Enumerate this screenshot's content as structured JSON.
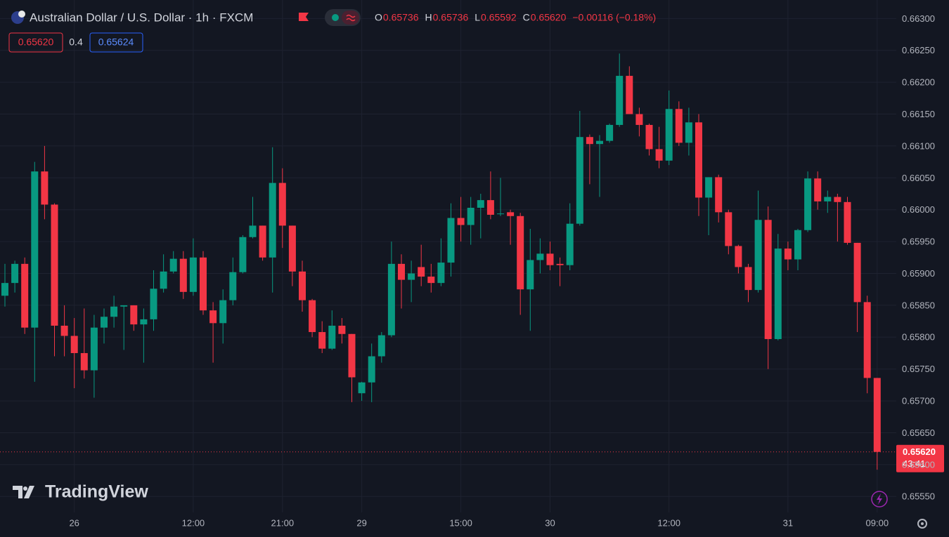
{
  "chart_data": {
    "type": "candlestick",
    "title": "Australian Dollar / U.S. Dollar · 1h · FXCM",
    "ohlc": [
      {
        "key": "O",
        "value": 0.65736,
        "label": "0.65736"
      },
      {
        "key": "H",
        "value": 0.65736,
        "label": "0.65736"
      },
      {
        "key": "L",
        "value": 0.65592,
        "label": "0.65592"
      },
      {
        "key": "C",
        "value": 0.6562,
        "label": "0.65620"
      }
    ],
    "change": {
      "value": -0.00116,
      "label": "−0.00116 (−0.18%)"
    },
    "bid": {
      "value": 0.6562,
      "label": "0.65620"
    },
    "spread": 0.4,
    "ask": {
      "value": 0.65624,
      "label": "0.65624"
    },
    "last_price": {
      "value": 0.6562,
      "label": "0.65620"
    },
    "countdown": "43:41",
    "watermark": "TradingView",
    "up_color": "#089981",
    "down_color": "#f23645",
    "grid": true,
    "categories": [
      null,
      null,
      null,
      null,
      null,
      null,
      null,
      "26",
      null,
      null,
      null,
      null,
      null,
      null,
      null,
      null,
      null,
      null,
      null,
      "12:00",
      null,
      null,
      null,
      null,
      null,
      null,
      null,
      null,
      "21:00",
      null,
      null,
      null,
      null,
      null,
      null,
      null,
      "29",
      null,
      null,
      null,
      null,
      null,
      null,
      null,
      null,
      null,
      "15:00",
      null,
      null,
      null,
      null,
      null,
      null,
      null,
      null,
      "30",
      null,
      null,
      null,
      null,
      null,
      null,
      null,
      null,
      null,
      null,
      null,
      "12:00",
      null,
      null,
      null,
      null,
      null,
      null,
      null,
      null,
      null,
      null,
      null,
      "31",
      null,
      null,
      null,
      null,
      null,
      null,
      null,
      null,
      "09:00"
    ],
    "open": [
      0.65865,
      0.65885,
      0.65915,
      0.65815,
      0.6606,
      0.66008,
      0.65818,
      0.65802,
      0.65775,
      0.65748,
      0.65815,
      0.65832,
      0.65848,
      0.6585,
      0.6582,
      0.65828,
      0.65876,
      0.65903,
      0.65923,
      0.65871,
      0.65925,
      0.65842,
      0.65822,
      0.65858,
      0.65902,
      0.65957,
      0.65975,
      0.65925,
      0.66042,
      0.65975,
      0.65903,
      0.65858,
      0.65808,
      0.65782,
      0.65818,
      0.65805,
      0.65712,
      0.65729,
      0.6577,
      0.65803,
      0.65915,
      0.6589,
      0.6591,
      0.65895,
      0.65885,
      0.65917,
      0.65987,
      0.65976,
      0.66003,
      0.66015,
      0.65993,
      0.65996,
      0.6599,
      0.65875,
      0.65921,
      0.65931,
      0.65915,
      0.65913,
      0.65978,
      0.66114,
      0.66103,
      0.66108,
      0.66133,
      0.6621,
      0.6615,
      0.66133,
      0.66095,
      0.66077,
      0.66158,
      0.66105,
      0.66137,
      0.66019,
      0.66051,
      0.65996,
      0.65943,
      0.6591,
      0.65874,
      0.65984,
      0.65797,
      0.65939,
      0.65922,
      0.65968,
      0.66049,
      0.66013,
      0.6602,
      0.66012,
      0.65948,
      0.65855,
      0.65736
    ],
    "high": [
      0.65915,
      0.6592,
      0.65925,
      0.66075,
      0.661,
      0.6601,
      0.6585,
      0.6583,
      0.65845,
      0.65835,
      0.65845,
      0.65865,
      0.6585,
      0.6585,
      0.65845,
      0.65905,
      0.6593,
      0.65935,
      0.65935,
      0.65955,
      0.65935,
      0.65855,
      0.65875,
      0.65925,
      0.6596,
      0.6602,
      0.65975,
      0.66098,
      0.66065,
      0.65975,
      0.6592,
      0.6586,
      0.65825,
      0.65842,
      0.6583,
      0.65805,
      0.6573,
      0.6579,
      0.65808,
      0.6595,
      0.6593,
      0.6592,
      0.65945,
      0.65915,
      0.65955,
      0.6601,
      0.6602,
      0.6602,
      0.66025,
      0.6606,
      0.6605,
      0.66,
      0.65995,
      0.6597,
      0.65955,
      0.6595,
      0.65925,
      0.6601,
      0.66155,
      0.66118,
      0.66117,
      0.66135,
      0.66245,
      0.66225,
      0.6616,
      0.66135,
      0.6613,
      0.66187,
      0.6617,
      0.6616,
      0.6615,
      0.66051,
      0.66055,
      0.66,
      0.65945,
      0.65915,
      0.6603,
      0.66005,
      0.65962,
      0.6595,
      0.6597,
      0.6606,
      0.6606,
      0.6603,
      0.66025,
      0.6602,
      0.65948,
      0.65865,
      0.65736
    ],
    "low": [
      0.65848,
      0.6587,
      0.65805,
      0.6573,
      0.65985,
      0.6577,
      0.6577,
      0.6572,
      0.65735,
      0.65705,
      0.6579,
      0.65815,
      0.6578,
      0.6581,
      0.6576,
      0.6581,
      0.6587,
      0.659,
      0.6586,
      0.65865,
      0.65835,
      0.6576,
      0.6579,
      0.6585,
      0.659,
      0.65955,
      0.6592,
      0.6587,
      0.6594,
      0.6588,
      0.6584,
      0.658,
      0.65775,
      0.6578,
      0.6579,
      0.65698,
      0.657,
      0.65698,
      0.6576,
      0.658,
      0.65845,
      0.65855,
      0.6588,
      0.6587,
      0.6588,
      0.65895,
      0.6595,
      0.65945,
      0.65955,
      0.65985,
      0.6599,
      0.65945,
      0.65835,
      0.6581,
      0.659,
      0.65905,
      0.6588,
      0.65905,
      0.65975,
      0.6604,
      0.6602,
      0.66105,
      0.6613,
      0.6615,
      0.66115,
      0.66085,
      0.66065,
      0.6607,
      0.661,
      0.66085,
      0.6599,
      0.6596,
      0.6598,
      0.6593,
      0.659,
      0.65855,
      0.6587,
      0.6575,
      0.65795,
      0.65905,
      0.65905,
      0.65965,
      0.66,
      0.65995,
      0.6595,
      0.65945,
      0.65808,
      0.65712,
      0.65592
    ],
    "close": [
      0.65885,
      0.65915,
      0.65815,
      0.6606,
      0.66008,
      0.65818,
      0.65802,
      0.65775,
      0.65748,
      0.65815,
      0.65832,
      0.65848,
      0.6585,
      0.6582,
      0.65828,
      0.65876,
      0.65903,
      0.65923,
      0.65871,
      0.65925,
      0.65842,
      0.65822,
      0.65858,
      0.65902,
      0.65957,
      0.65975,
      0.65925,
      0.66042,
      0.65975,
      0.65903,
      0.65858,
      0.65808,
      0.65782,
      0.65818,
      0.65805,
      0.65737,
      0.65729,
      0.6577,
      0.65803,
      0.65915,
      0.6589,
      0.659,
      0.65895,
      0.65885,
      0.65917,
      0.65987,
      0.65976,
      0.66003,
      0.66015,
      0.65992,
      0.65994,
      0.6599,
      0.65875,
      0.65921,
      0.65931,
      0.65913,
      0.65913,
      0.65978,
      0.66114,
      0.66103,
      0.66108,
      0.66133,
      0.6621,
      0.6615,
      0.66133,
      0.66095,
      0.66077,
      0.66158,
      0.66105,
      0.66137,
      0.66019,
      0.66051,
      0.65996,
      0.65943,
      0.6591,
      0.65874,
      0.65984,
      0.65797,
      0.65939,
      0.65922,
      0.65968,
      0.66049,
      0.66013,
      0.6602,
      0.66012,
      0.65948,
      0.65855,
      0.65736,
      0.6562
    ],
    "ylim": [
      0.65525,
      0.66329
    ],
    "yticks": [
      {
        "value": 0.6555,
        "label": "0.65550"
      },
      {
        "value": 0.656,
        "label": "0.65600"
      },
      {
        "value": 0.6565,
        "label": "0.65650"
      },
      {
        "value": 0.657,
        "label": "0.65700"
      },
      {
        "value": 0.6575,
        "label": "0.65750"
      },
      {
        "value": 0.658,
        "label": "0.65800"
      },
      {
        "value": 0.6585,
        "label": "0.65850"
      },
      {
        "value": 0.659,
        "label": "0.65900"
      },
      {
        "value": 0.6595,
        "label": "0.65950"
      },
      {
        "value": 0.66,
        "label": "0.66000"
      },
      {
        "value": 0.6605,
        "label": "0.66050"
      },
      {
        "value": 0.661,
        "label": "0.66100"
      },
      {
        "value": 0.6615,
        "label": "0.66150"
      },
      {
        "value": 0.662,
        "label": "0.66200"
      },
      {
        "value": 0.6625,
        "label": "0.66250"
      },
      {
        "value": 0.663,
        "label": "0.66300"
      }
    ]
  }
}
